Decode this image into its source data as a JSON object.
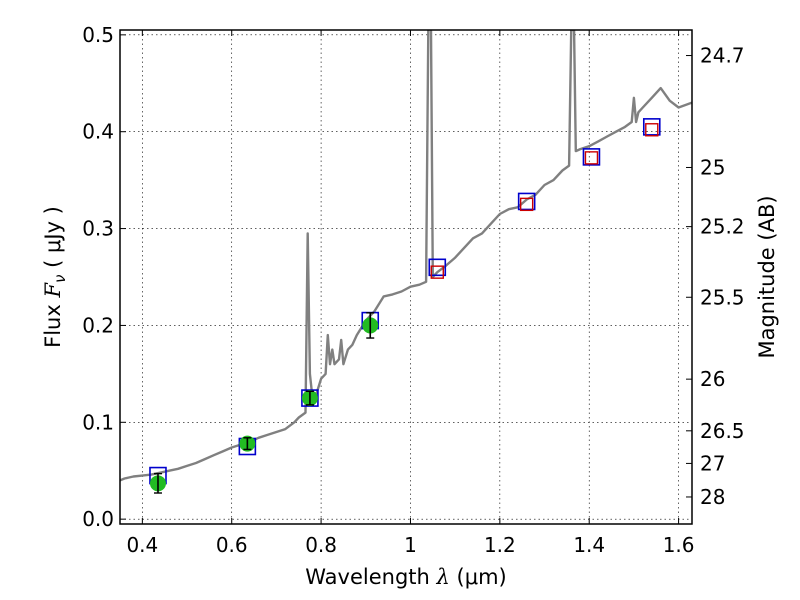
{
  "chart_data": {
    "type": "scatter",
    "title": "",
    "xlabel": "Wavelength",
    "xlabel_symbol": "λ",
    "xlabel_unit": "(μm)",
    "ylabel": "Flux",
    "ylabel_symbol": "F",
    "ylabel_symbol_sub": "ν",
    "ylabel_unit": "( μJy )",
    "y2label": "Magnitude (AB)",
    "xlim": [
      0.35,
      1.63
    ],
    "ylim": [
      -0.005,
      0.505
    ],
    "x_ticks": [
      0.4,
      0.6,
      0.8,
      1.0,
      1.2,
      1.4,
      1.6
    ],
    "x_tick_labels": [
      "0.4",
      "0.6",
      "0.8",
      "1",
      "1.2",
      "1.4",
      "1.6"
    ],
    "y_ticks": [
      0.0,
      0.1,
      0.2,
      0.3,
      0.4,
      0.5
    ],
    "y_tick_labels": [
      "0.0",
      "0.1",
      "0.2",
      "0.3",
      "0.4",
      "0.5"
    ],
    "magnitude_ticks": [
      24.7,
      25,
      25.2,
      25.5,
      26,
      26.5,
      27,
      28
    ],
    "magnitude_tick_labels": [
      "24.7",
      "25",
      "25.2",
      "25.5",
      "26",
      "26.5",
      "27",
      "28"
    ],
    "grid": true,
    "colors": {
      "spectrum": "#808080",
      "observed_marker": "#22bb22",
      "model_box": "#0000cc",
      "prediction_box": "#cc0000",
      "error_bar": "#000000"
    },
    "series": [
      {
        "kind": "line",
        "x": [
          0.35,
          0.36,
          0.38,
          0.4,
          0.42,
          0.44,
          0.46,
          0.48,
          0.5,
          0.52,
          0.54,
          0.56,
          0.58,
          0.6,
          0.62,
          0.64,
          0.66,
          0.68,
          0.7,
          0.72,
          0.74,
          0.75,
          0.765,
          0.77,
          0.775,
          0.78,
          0.79,
          0.8,
          0.81,
          0.815,
          0.82,
          0.825,
          0.83,
          0.84,
          0.845,
          0.85,
          0.86,
          0.87,
          0.88,
          0.9,
          0.92,
          0.94,
          0.96,
          0.98,
          1.0,
          1.02,
          1.035,
          1.04,
          1.043,
          1.046,
          1.05,
          1.06,
          1.08,
          1.1,
          1.12,
          1.14,
          1.16,
          1.18,
          1.2,
          1.22,
          1.24,
          1.26,
          1.28,
          1.3,
          1.32,
          1.34,
          1.355,
          1.36,
          1.363,
          1.366,
          1.37,
          1.38,
          1.4,
          1.42,
          1.44,
          1.46,
          1.48,
          1.495,
          1.5,
          1.505,
          1.51,
          1.52,
          1.54,
          1.56,
          1.58,
          1.6,
          1.63
        ],
        "y": [
          0.04,
          0.042,
          0.044,
          0.045,
          0.046,
          0.048,
          0.05,
          0.052,
          0.055,
          0.058,
          0.062,
          0.066,
          0.07,
          0.074,
          0.077,
          0.08,
          0.084,
          0.087,
          0.09,
          0.093,
          0.1,
          0.105,
          0.11,
          0.295,
          0.15,
          0.128,
          0.13,
          0.145,
          0.15,
          0.19,
          0.16,
          0.175,
          0.16,
          0.165,
          0.185,
          0.16,
          0.175,
          0.18,
          0.19,
          0.205,
          0.215,
          0.23,
          0.232,
          0.235,
          0.24,
          0.242,
          0.245,
          0.505,
          0.51,
          0.505,
          0.25,
          0.255,
          0.262,
          0.27,
          0.28,
          0.29,
          0.295,
          0.305,
          0.315,
          0.32,
          0.322,
          0.33,
          0.335,
          0.345,
          0.35,
          0.36,
          0.365,
          0.51,
          0.505,
          0.51,
          0.38,
          0.382,
          0.385,
          0.39,
          0.395,
          0.4,
          0.405,
          0.41,
          0.435,
          0.41,
          0.42,
          0.425,
          0.435,
          0.445,
          0.432,
          0.425,
          0.43
        ]
      },
      {
        "kind": "observed",
        "x": [
          0.435,
          0.635,
          0.775,
          0.91
        ],
        "y": [
          0.037,
          0.078,
          0.125,
          0.2
        ],
        "yerr": [
          0.01,
          0.006,
          0.007,
          0.013
        ]
      },
      {
        "kind": "model",
        "x": [
          0.435,
          0.635,
          0.775,
          0.91,
          1.06,
          1.26,
          1.405,
          1.54
        ],
        "y": [
          0.045,
          0.075,
          0.125,
          0.205,
          0.26,
          0.328,
          0.374,
          0.405
        ]
      },
      {
        "kind": "prediction",
        "x": [
          1.06,
          1.26,
          1.405,
          1.54
        ],
        "y": [
          0.255,
          0.325,
          0.373,
          0.402
        ]
      }
    ]
  }
}
